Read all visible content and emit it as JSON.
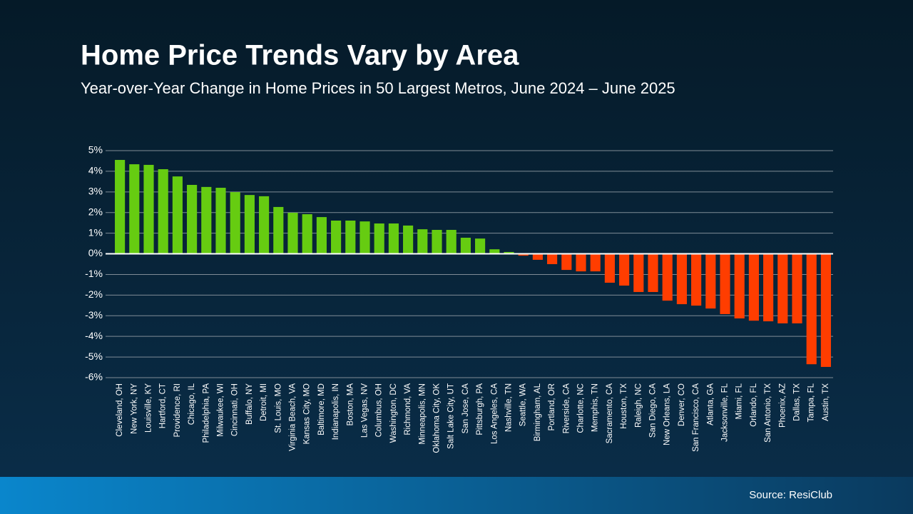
{
  "chart_data": {
    "type": "bar",
    "title": "Home Price Trends Vary by Area",
    "subtitle": "Year-over-Year Change in Home Prices in 50 Largest Metros, June 2024 – June 2025",
    "source": "Source: ResiClub",
    "categories": [
      "Cleveland, OH",
      "New York, NY",
      "Louisville, KY",
      "Hartford, CT",
      "Providence, RI",
      "Chicago, IL",
      "Philadelphia, PA",
      "Milwaukee, WI",
      "Cincinnati, OH",
      "Buffalo, NY",
      "Detroit, MI",
      "St. Louis, MO",
      "Virginia Beach, VA",
      "Kansas City, MO",
      "Baltimore, MD",
      "Indianapolis, IN",
      "Boston, MA",
      "Las Vegas, NV",
      "Columbus, OH",
      "Washington, DC",
      "Richmond, VA",
      "Minneapolis, MN",
      "Oklahoma City, OK",
      "Salt Lake City, UT",
      "San Jose, CA",
      "Pittsburgh, PA",
      "Los Angeles, CA",
      "Nashville, TN",
      "Seattle, WA",
      "Birmingham, AL",
      "Portland, OR",
      "Riverside, CA",
      "Charlotte, NC",
      "Memphis, TN",
      "Sacramento, CA",
      "Houston, TX",
      "Raleigh, NC",
      "San Diego, CA",
      "New Orleans, LA",
      "Denver, CO",
      "San Francisco, CA",
      "Atlanta, GA",
      "Jacksonville, FL",
      "Miami, FL",
      "Orlando, FL",
      "San Antonio, TX",
      "Phoenix, AZ",
      "Dallas, TX",
      "Tampa, FL",
      "Austin, TX"
    ],
    "values": [
      4.55,
      4.34,
      4.31,
      4.1,
      3.75,
      3.34,
      3.24,
      3.2,
      2.99,
      2.85,
      2.79,
      2.27,
      1.99,
      1.92,
      1.78,
      1.61,
      1.61,
      1.57,
      1.47,
      1.47,
      1.37,
      1.19,
      1.16,
      1.16,
      0.78,
      0.74,
      0.22,
      0.09,
      -0.09,
      -0.29,
      -0.5,
      -0.78,
      -0.85,
      -0.85,
      -1.4,
      -1.54,
      -1.85,
      -1.85,
      -2.27,
      -2.44,
      -2.51,
      -2.65,
      -2.92,
      -3.13,
      -3.24,
      -3.27,
      -3.37,
      -3.37,
      -5.35,
      -5.48
    ],
    "positive_color": "#66cc11",
    "negative_color": "#ff3d00",
    "ylim": [
      -6,
      5
    ],
    "yticks": [
      {
        "value": 5,
        "label": "5%"
      },
      {
        "value": 4,
        "label": "4%"
      },
      {
        "value": 3,
        "label": "3%"
      },
      {
        "value": 2,
        "label": "2%"
      },
      {
        "value": 1,
        "label": "1%"
      },
      {
        "value": 0,
        "label": "0%"
      },
      {
        "value": -1,
        "label": "-1%"
      },
      {
        "value": -2,
        "label": "-2%"
      },
      {
        "value": -3,
        "label": "-3%"
      },
      {
        "value": -4,
        "label": "-4%"
      },
      {
        "value": -5,
        "label": "-5%"
      },
      {
        "value": -6,
        "label": "-6%"
      }
    ],
    "grid": true
  }
}
